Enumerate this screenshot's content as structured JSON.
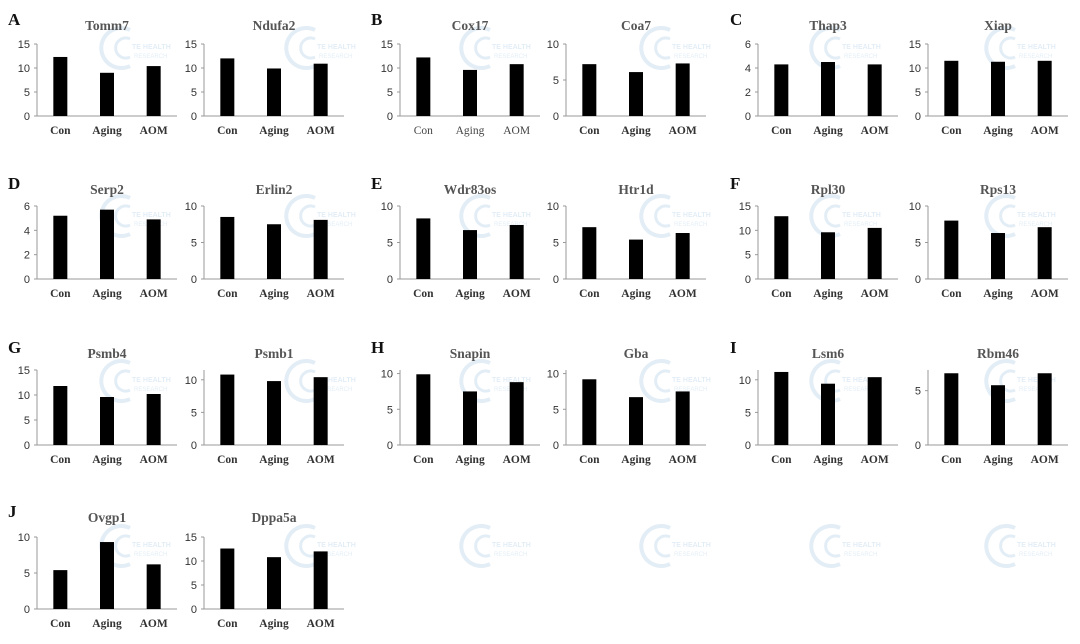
{
  "panels": [
    {
      "letter": "A",
      "charts": [
        0,
        1
      ]
    },
    {
      "letter": "B",
      "charts": [
        2,
        3
      ]
    },
    {
      "letter": "C",
      "charts": [
        4,
        5
      ]
    },
    {
      "letter": "D",
      "charts": [
        6,
        7
      ]
    },
    {
      "letter": "E",
      "charts": [
        8,
        9
      ]
    },
    {
      "letter": "F",
      "charts": [
        10,
        11
      ]
    },
    {
      "letter": "G",
      "charts": [
        12,
        13
      ]
    },
    {
      "letter": "H",
      "charts": [
        14,
        15
      ]
    },
    {
      "letter": "I",
      "charts": [
        16,
        17
      ]
    },
    {
      "letter": "J",
      "charts": [
        18,
        19
      ]
    }
  ],
  "watermark": {
    "line1": "TE HEALTH",
    "line2": "RESEARCH"
  },
  "chart_data": [
    {
      "type": "bar",
      "title": "Tomm7",
      "categories": [
        "Con",
        "Aging",
        "AOM"
      ],
      "values": [
        12.3,
        9.0,
        10.4
      ],
      "ylim": [
        0,
        15
      ],
      "yticks": [
        "0",
        "5",
        "10",
        "15"
      ]
    },
    {
      "type": "bar",
      "title": "Ndufa2",
      "categories": [
        "Con",
        "Aging",
        "AOM"
      ],
      "values": [
        12.0,
        9.9,
        10.9
      ],
      "ylim": [
        0,
        15
      ],
      "yticks": [
        "0",
        "5",
        "10",
        "15"
      ]
    },
    {
      "type": "bar",
      "title": "Cox17",
      "categories": [
        "Con",
        "Aging",
        "AOM"
      ],
      "values": [
        12.2,
        9.6,
        10.8
      ],
      "ylim": [
        0,
        15
      ],
      "yticks": [
        "0",
        "5",
        "10",
        "15"
      ]
    },
    {
      "type": "bar",
      "title": "Coa7",
      "categories": [
        "Con",
        "Aging",
        "AOM"
      ],
      "values": [
        7.2,
        6.1,
        7.3
      ],
      "ylim": [
        0,
        10
      ],
      "yticks": [
        "0",
        "5",
        "10"
      ]
    },
    {
      "type": "bar",
      "title": "Thap3",
      "categories": [
        "Con",
        "Aging",
        "AOM"
      ],
      "values": [
        4.3,
        4.5,
        4.3
      ],
      "ylim": [
        0,
        6
      ],
      "yticks": [
        "0",
        "2",
        "4",
        "6"
      ]
    },
    {
      "type": "bar",
      "title": "Xiap",
      "categories": [
        "Con",
        "Aging",
        "AOM"
      ],
      "values": [
        11.5,
        11.3,
        11.5
      ],
      "ylim": [
        0,
        15
      ],
      "yticks": [
        "0",
        "5",
        "10",
        "15"
      ]
    },
    {
      "type": "bar",
      "title": "Serp2",
      "categories": [
        "Con",
        "Aging",
        "AOM"
      ],
      "values": [
        5.2,
        5.7,
        4.9
      ],
      "ylim": [
        0,
        6
      ],
      "yticks": [
        "0",
        "2",
        "4",
        "6"
      ]
    },
    {
      "type": "bar",
      "title": "Erlin2",
      "categories": [
        "Con",
        "Aging",
        "AOM"
      ],
      "values": [
        8.5,
        7.5,
        8.1
      ],
      "ylim": [
        0,
        10
      ],
      "yticks": [
        "0",
        "5",
        "10"
      ]
    },
    {
      "type": "bar",
      "title": "Wdr83os",
      "categories": [
        "Con",
        "Aging",
        "AOM"
      ],
      "values": [
        8.3,
        6.7,
        7.4
      ],
      "ylim": [
        0,
        10
      ],
      "yticks": [
        "0",
        "5",
        "10"
      ]
    },
    {
      "type": "bar",
      "title": "Htr1d",
      "categories": [
        "Con",
        "Aging",
        "AOM"
      ],
      "values": [
        7.1,
        5.4,
        6.3
      ],
      "ylim": [
        0,
        10
      ],
      "yticks": [
        "0",
        "5",
        "10"
      ]
    },
    {
      "type": "bar",
      "title": "Rpl30",
      "categories": [
        "Con",
        "Aging",
        "AOM"
      ],
      "values": [
        12.9,
        9.6,
        10.5
      ],
      "ylim": [
        0,
        15
      ],
      "yticks": [
        "0",
        "5",
        "10",
        "15"
      ]
    },
    {
      "type": "bar",
      "title": "Rps13",
      "categories": [
        "Con",
        "Aging",
        "AOM"
      ],
      "values": [
        8.0,
        6.3,
        7.1
      ],
      "ylim": [
        0,
        10
      ],
      "yticks": [
        "0",
        "5",
        "10"
      ]
    },
    {
      "type": "bar",
      "title": "Psmb4",
      "categories": [
        "Con",
        "Aging",
        "AOM"
      ],
      "values": [
        11.8,
        9.6,
        10.2
      ],
      "ylim": [
        0,
        15
      ],
      "yticks": [
        "0",
        "5",
        "10",
        "15"
      ]
    },
    {
      "type": "bar",
      "title": "Psmb1",
      "categories": [
        "Con",
        "Aging",
        "AOM"
      ],
      "values": [
        10.8,
        9.8,
        10.4
      ],
      "ylim": [
        0,
        11.5
      ],
      "yticks": [
        "0",
        "5",
        "10"
      ]
    },
    {
      "type": "bar",
      "title": "Snapin",
      "categories": [
        "Con",
        "Aging",
        "AOM"
      ],
      "values": [
        9.9,
        7.5,
        8.8
      ],
      "ylim": [
        0,
        10.5
      ],
      "yticks": [
        "0",
        "5",
        "10"
      ]
    },
    {
      "type": "bar",
      "title": "Gba",
      "categories": [
        "Con",
        "Aging",
        "AOM"
      ],
      "values": [
        9.2,
        6.7,
        7.5
      ],
      "ylim": [
        0,
        10.5
      ],
      "yticks": [
        "0",
        "5",
        "10"
      ]
    },
    {
      "type": "bar",
      "title": "Lsm6",
      "categories": [
        "Con",
        "Aging",
        "AOM"
      ],
      "values": [
        11.2,
        9.4,
        10.4
      ],
      "ylim": [
        0,
        11.5
      ],
      "yticks": [
        "0",
        "5",
        "10"
      ]
    },
    {
      "type": "bar",
      "title": "Rbm46",
      "categories": [
        "Con",
        "Aging",
        "AOM"
      ],
      "values": [
        6.6,
        5.5,
        6.6
      ],
      "ylim": [
        0,
        6.9
      ],
      "yticks": [
        "0",
        "5"
      ]
    },
    {
      "type": "bar",
      "title": "Ovgp1",
      "categories": [
        "Con",
        "Aging",
        "AOM"
      ],
      "values": [
        5.4,
        9.3,
        6.2
      ],
      "ylim": [
        0,
        10
      ],
      "yticks": [
        "0",
        "5",
        "10"
      ]
    },
    {
      "type": "bar",
      "title": "Dppa5a",
      "categories": [
        "Con",
        "Aging",
        "AOM"
      ],
      "values": [
        12.6,
        10.8,
        12.0
      ],
      "ylim": [
        0,
        15
      ],
      "yticks": [
        "0",
        "5",
        "10",
        "15"
      ]
    }
  ]
}
